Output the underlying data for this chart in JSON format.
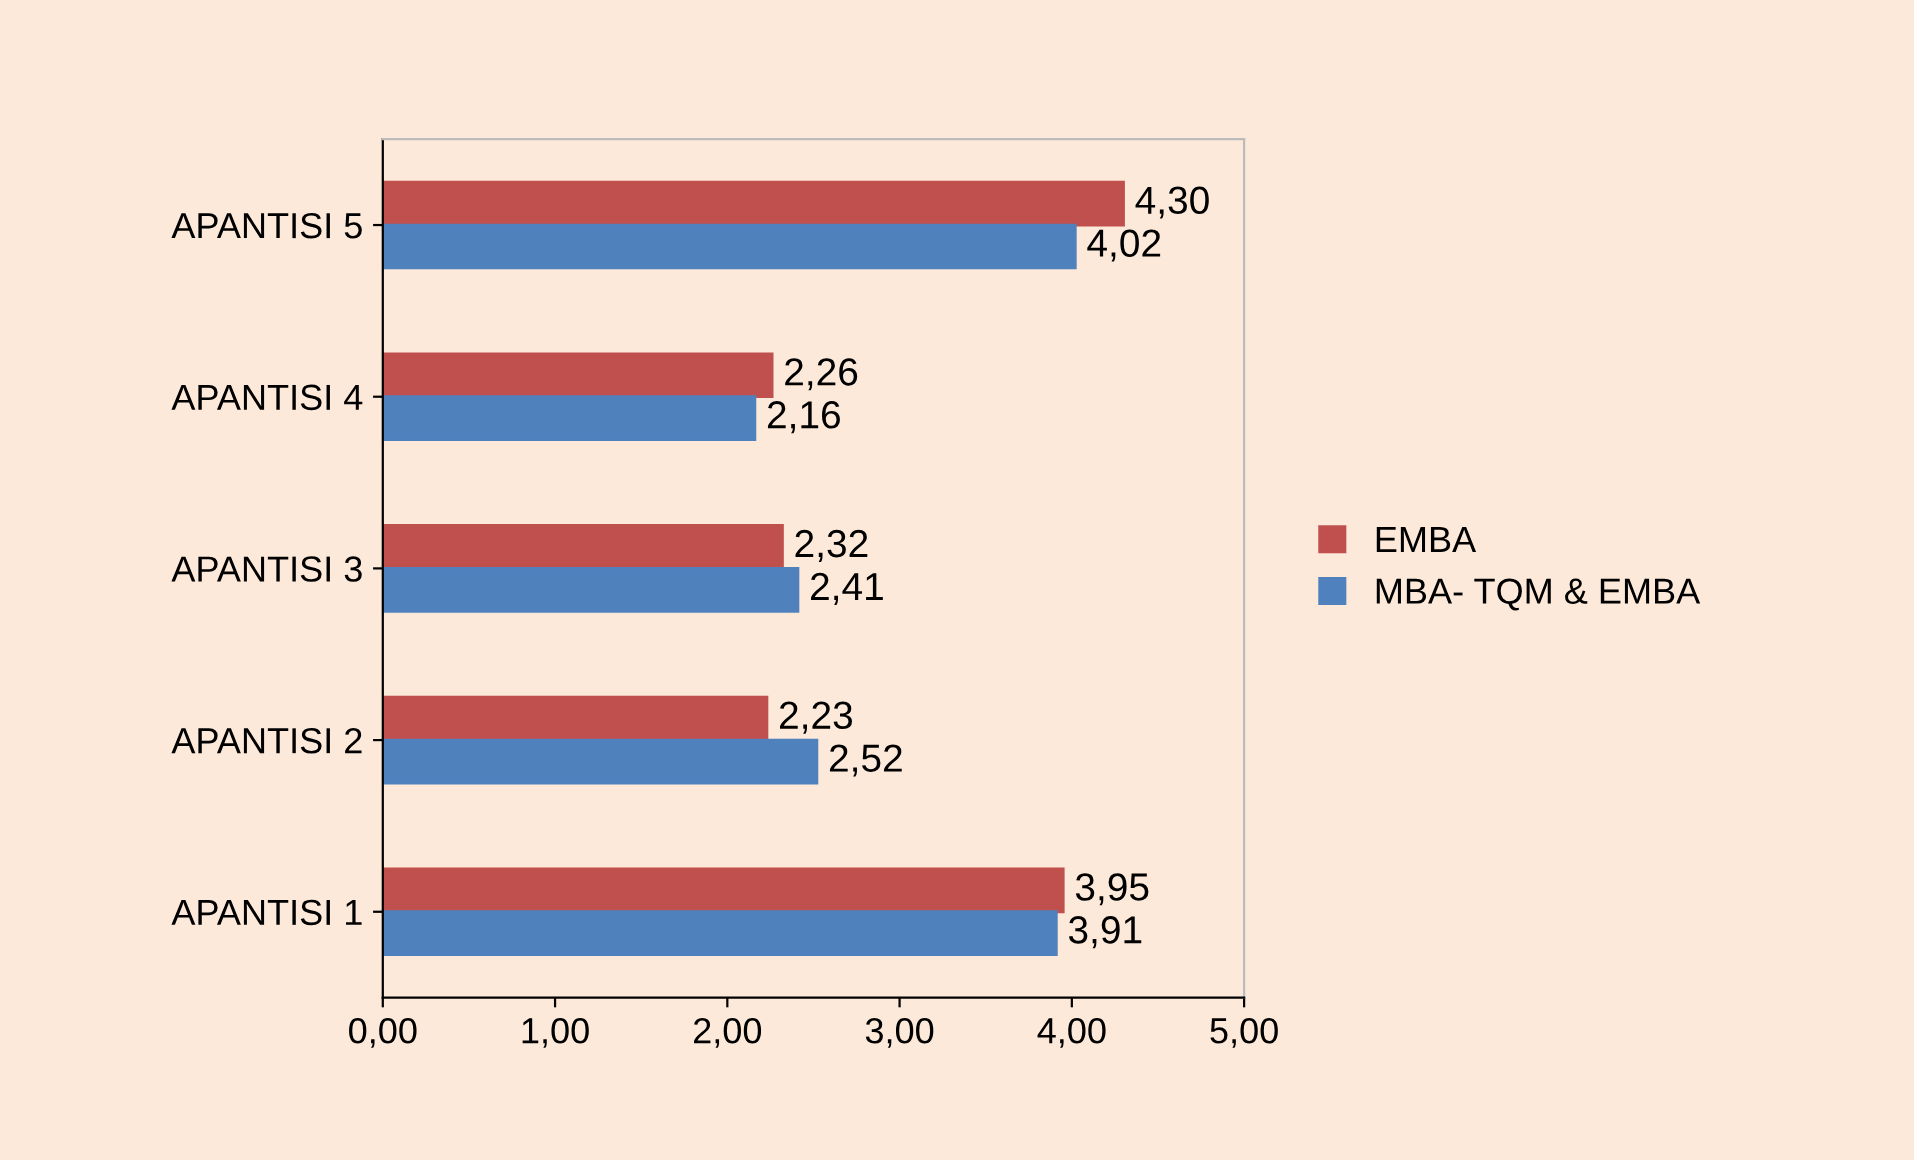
{
  "chart_data": {
    "type": "bar",
    "orientation": "horizontal",
    "categories": [
      "APANTISI 5",
      "APANTISI 4",
      "APANTISI 3",
      "APANTISI 2",
      "APANTISI 1"
    ],
    "series": [
      {
        "name": "EMBA",
        "color": "#c0504d",
        "values": [
          4.3,
          2.26,
          2.32,
          2.23,
          3.95
        ],
        "value_labels": [
          "4,30",
          "2,26",
          "2,32",
          "2,23",
          "3,95"
        ]
      },
      {
        "name": "MBA- TQM & EMBA",
        "color": "#4f81bd",
        "values": [
          4.02,
          2.16,
          2.41,
          2.52,
          3.91
        ],
        "value_labels": [
          "4,02",
          "2,16",
          "2,41",
          "2,52",
          "3,91"
        ]
      }
    ],
    "xlim": [
      0,
      5
    ],
    "xticks": [
      {
        "value": 0,
        "label": "0,00"
      },
      {
        "value": 1,
        "label": "1,00"
      },
      {
        "value": 2,
        "label": "2,00"
      },
      {
        "value": 3,
        "label": "3,00"
      },
      {
        "value": 4,
        "label": "4,00"
      },
      {
        "value": 5,
        "label": "5,00"
      }
    ],
    "grid": false,
    "legend": "right"
  }
}
